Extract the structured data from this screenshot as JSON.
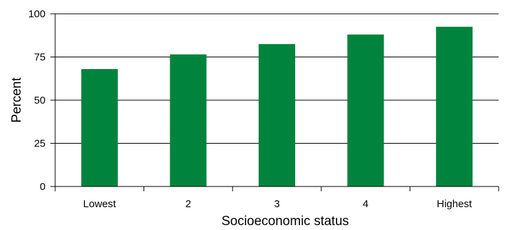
{
  "chart_data": {
    "type": "bar",
    "title": "",
    "xlabel": "Socioeconomic status",
    "ylabel": "Percent",
    "categories": [
      "Lowest",
      "2",
      "3",
      "4",
      "Highest"
    ],
    "values": [
      68,
      76.5,
      82.5,
      88,
      92.5
    ],
    "ylim": [
      0,
      100
    ],
    "yticks": [
      0,
      25,
      50,
      75,
      100
    ],
    "grid": true,
    "bar_color": "#00843d"
  }
}
